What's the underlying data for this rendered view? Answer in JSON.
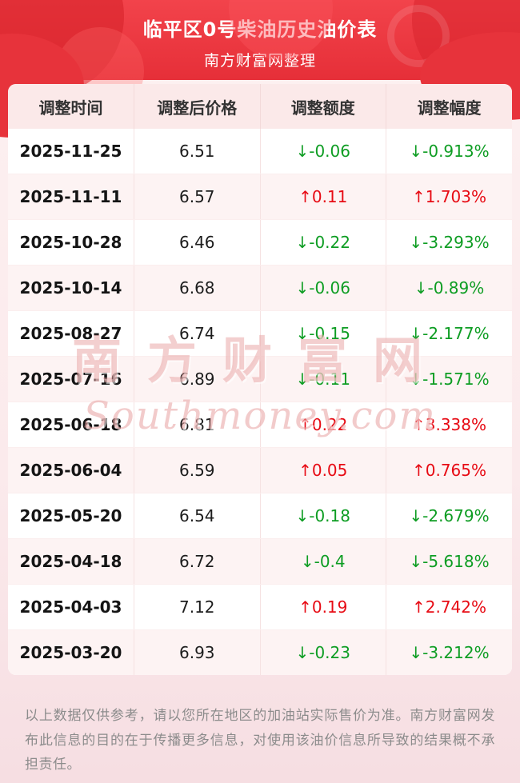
{
  "page": {
    "title": "临平区0号柴油历史油价表",
    "subtitle": "南方财富网整理"
  },
  "table": {
    "columns": [
      "调整时间",
      "调整后价格",
      "调整额度",
      "调整幅度"
    ],
    "rows": [
      {
        "date": "2025-11-25",
        "price": "6.51",
        "change": "↓-0.06",
        "percent": "↓-0.913%",
        "direction": "down"
      },
      {
        "date": "2025-11-11",
        "price": "6.57",
        "change": "↑0.11",
        "percent": "↑1.703%",
        "direction": "up"
      },
      {
        "date": "2025-10-28",
        "price": "6.46",
        "change": "↓-0.22",
        "percent": "↓-3.293%",
        "direction": "down"
      },
      {
        "date": "2025-10-14",
        "price": "6.68",
        "change": "↓-0.06",
        "percent": "↓-0.89%",
        "direction": "down"
      },
      {
        "date": "2025-08-27",
        "price": "6.74",
        "change": "↓-0.15",
        "percent": "↓-2.177%",
        "direction": "down"
      },
      {
        "date": "2025-07-16",
        "price": "6.89",
        "change": "↓-0.11",
        "percent": "↓-1.571%",
        "direction": "down"
      },
      {
        "date": "2025-06-18",
        "price": "6.81",
        "change": "↑0.22",
        "percent": "↑3.338%",
        "direction": "up"
      },
      {
        "date": "2025-06-04",
        "price": "6.59",
        "change": "↑0.05",
        "percent": "↑0.765%",
        "direction": "up"
      },
      {
        "date": "2025-05-20",
        "price": "6.54",
        "change": "↓-0.18",
        "percent": "↓-2.679%",
        "direction": "down"
      },
      {
        "date": "2025-04-18",
        "price": "6.72",
        "change": "↓-0.4",
        "percent": "↓-5.618%",
        "direction": "down"
      },
      {
        "date": "2025-04-03",
        "price": "7.12",
        "change": "↑0.19",
        "percent": "↑2.742%",
        "direction": "up"
      },
      {
        "date": "2025-03-20",
        "price": "6.93",
        "change": "↓-0.23",
        "percent": "↓-3.212%",
        "direction": "down"
      }
    ]
  },
  "watermark": {
    "cn": "南方财富网",
    "en": "Southmoney.com"
  },
  "footer": {
    "disclaimer": "以上数据仅供参考，请以您所在地区的加油站实际售价为准。南方财富网发布此信息的目的在于传播更多信息，对使用该油价信息所导致的结果概不承担责任。"
  },
  "colors": {
    "up": "#e70b14",
    "down": "#0e9d23",
    "header_red": "#e93038",
    "page_bg": "#fbeaec"
  }
}
